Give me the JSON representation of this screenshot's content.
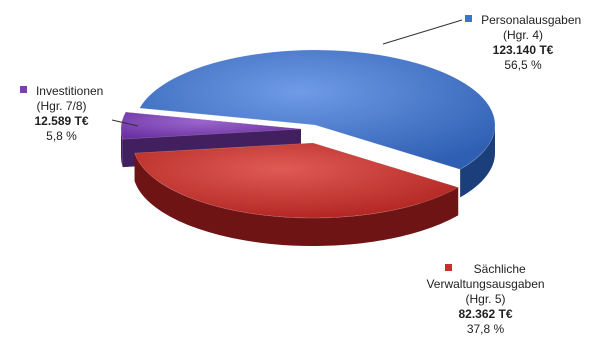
{
  "chart_data": {
    "type": "pie",
    "style": "3d-exploded",
    "title": "",
    "slices": [
      {
        "label_line1": "Personalausgaben",
        "label_line2": "(Hgr. 4)",
        "value_text": "123.140 T€",
        "percent_text": "56,5 %",
        "value": 123140,
        "percent": 56.5,
        "color": "#3f73c9",
        "side_color": "#1b3f7a"
      },
      {
        "label_line0": "Sächliche",
        "label_line1": "Verwaltungsausgaben",
        "label_line2": "(Hgr. 5)",
        "value_text": "82.362 T€",
        "percent_text": "37,8 %",
        "value": 82362,
        "percent": 37.8,
        "color": "#c9302c",
        "side_color": "#6e1414"
      },
      {
        "label_line1": "Investitionen",
        "label_line2": "(Hgr. 7/8)",
        "value_text": "12.589 T€",
        "percent_text": "5,8 %",
        "value": 12589,
        "percent": 5.8,
        "color": "#7a3fb0",
        "side_color": "#42205f"
      }
    ],
    "unit": "T€"
  }
}
